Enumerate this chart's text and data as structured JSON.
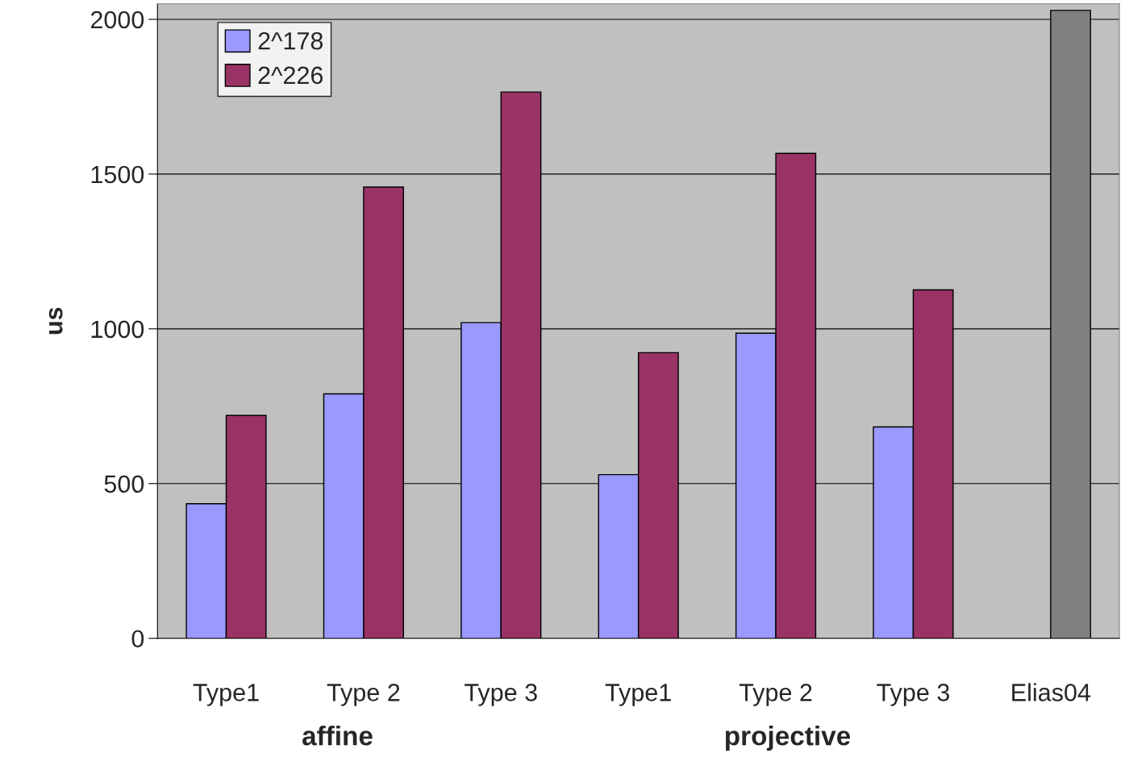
{
  "chart_data": {
    "type": "bar",
    "ylabel": "us",
    "categories": [
      "Type1",
      "Type 2",
      "Type 3",
      "Type1",
      "Type 2",
      "Type 3",
      "Elias04"
    ],
    "series": [
      {
        "name": "2^178",
        "color": "#9999ff",
        "values": [
          435,
          790,
          1020,
          529,
          986,
          683,
          null
        ]
      },
      {
        "name": "2^226",
        "color": "#993366",
        "colors": [
          "#993366",
          "#993366",
          "#993366",
          "#993366",
          "#993366",
          "#993366",
          "#808080"
        ],
        "values": [
          720,
          1458,
          1765,
          923,
          1567,
          1126,
          2029
        ]
      }
    ],
    "ylim": [
      0,
      2050
    ],
    "yticks": [
      0,
      500,
      1000,
      1500,
      2000
    ],
    "grid": "y",
    "legend": "top left",
    "annotations": [
      "affine",
      "projective"
    ]
  }
}
